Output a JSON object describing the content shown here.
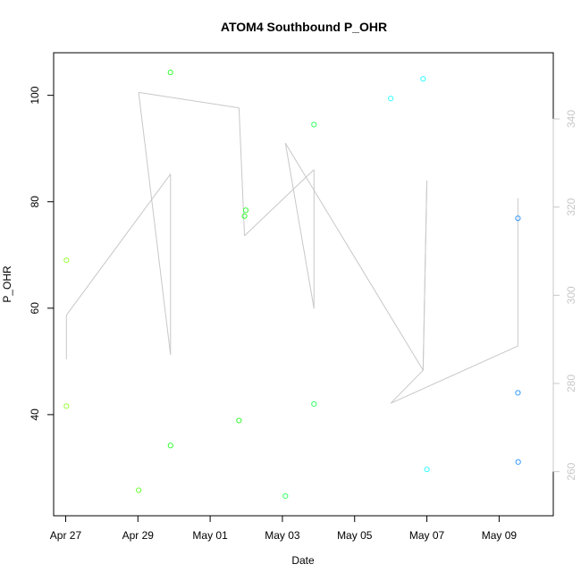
{
  "chart_data": {
    "type": "scatter",
    "title": "ATOM4 Southbound P_OHR",
    "xlabel": "Date",
    "ylabel": "P_OHR",
    "x_is_date": true,
    "xlim": [
      "2024-04-26T16:00",
      "2024-05-10T12:00"
    ],
    "ylim": [
      21,
      108
    ],
    "y_ticks": [
      40,
      60,
      80,
      100
    ],
    "x_ticks": [
      {
        "date": "2024-04-27",
        "label": "Apr 27"
      },
      {
        "date": "2024-04-29",
        "label": "Apr 29"
      },
      {
        "date": "2024-05-01",
        "label": "May 01"
      },
      {
        "date": "2024-05-03",
        "label": "May 03"
      },
      {
        "date": "2024-05-05",
        "label": "May 05"
      },
      {
        "date": "2024-05-07",
        "label": "May 07"
      },
      {
        "date": "2024-05-09",
        "label": "May 09"
      }
    ],
    "right_axis": {
      "ylim": [
        250,
        355
      ],
      "ticks": [
        260,
        280,
        300,
        320,
        340
      ],
      "color": "#c8c8c8"
    },
    "points": [
      {
        "x": "2024-04-27T00:30",
        "y": 69.0,
        "color": "#99ff33"
      },
      {
        "x": "2024-04-27T00:30",
        "y": 41.6,
        "color": "#99ff33"
      },
      {
        "x": "2024-04-29T00:30",
        "y": 25.8,
        "color": "#66ff33"
      },
      {
        "x": "2024-04-29T21:40",
        "y": 104.3,
        "color": "#33ff33"
      },
      {
        "x": "2024-04-29T21:40",
        "y": 34.2,
        "color": "#33ff33"
      },
      {
        "x": "2024-05-01T19:10",
        "y": 38.9,
        "color": "#33ff33"
      },
      {
        "x": "2024-05-01T22:50",
        "y": 77.3,
        "color": "#33ff33"
      },
      {
        "x": "2024-05-01T23:40",
        "y": 78.4,
        "color": "#33ff33"
      },
      {
        "x": "2024-05-03T02:00",
        "y": 24.7,
        "color": "#33ff66"
      },
      {
        "x": "2024-05-03T21:00",
        "y": 94.5,
        "color": "#33ff66"
      },
      {
        "x": "2024-05-03T21:00",
        "y": 42.0,
        "color": "#33ff66"
      },
      {
        "x": "2024-05-06T00:00",
        "y": 99.4,
        "color": "#33ffff"
      },
      {
        "x": "2024-05-06T21:30",
        "y": 103.1,
        "color": "#33ffff"
      },
      {
        "x": "2024-05-07T00:00",
        "y": 29.7,
        "color": "#33ffff"
      },
      {
        "x": "2024-05-09T12:30",
        "y": 76.9,
        "color": "#3399ff"
      },
      {
        "x": "2024-05-09T12:30",
        "y": 44.1,
        "color": "#3399ff"
      },
      {
        "x": "2024-05-09T12:40",
        "y": 31.1,
        "color": "#3399ff"
      }
    ],
    "line_series": {
      "color": "#c8c8c8",
      "axis": "right",
      "points": [
        {
          "x": "2024-04-27T00:30",
          "y": 285.5
        },
        {
          "x": "2024-04-27T00:30",
          "y": 295.5
        },
        {
          "x": "2024-04-29T21:40",
          "y": 327.5
        },
        {
          "x": "2024-04-29T21:40",
          "y": 286.5
        },
        {
          "x": "2024-04-29T00:30",
          "y": 346.0
        },
        {
          "x": "2024-05-01T19:10",
          "y": 342.5
        },
        {
          "x": "2024-05-01T22:50",
          "y": 313.5
        },
        {
          "x": "2024-05-03T21:00",
          "y": 328.5
        },
        {
          "x": "2024-05-03T21:00",
          "y": 297.0
        },
        {
          "x": "2024-05-03T02:00",
          "y": 334.5
        },
        {
          "x": "2024-05-06T21:30",
          "y": 283.0
        },
        {
          "x": "2024-05-07T00:00",
          "y": 326.0
        },
        {
          "x": "2024-05-06T21:30",
          "y": 283.0
        },
        {
          "x": "2024-05-06T00:00",
          "y": 275.5
        },
        {
          "x": "2024-05-09T12:30",
          "y": 288.5
        },
        {
          "x": "2024-05-09T12:30",
          "y": 322.0
        }
      ]
    }
  }
}
